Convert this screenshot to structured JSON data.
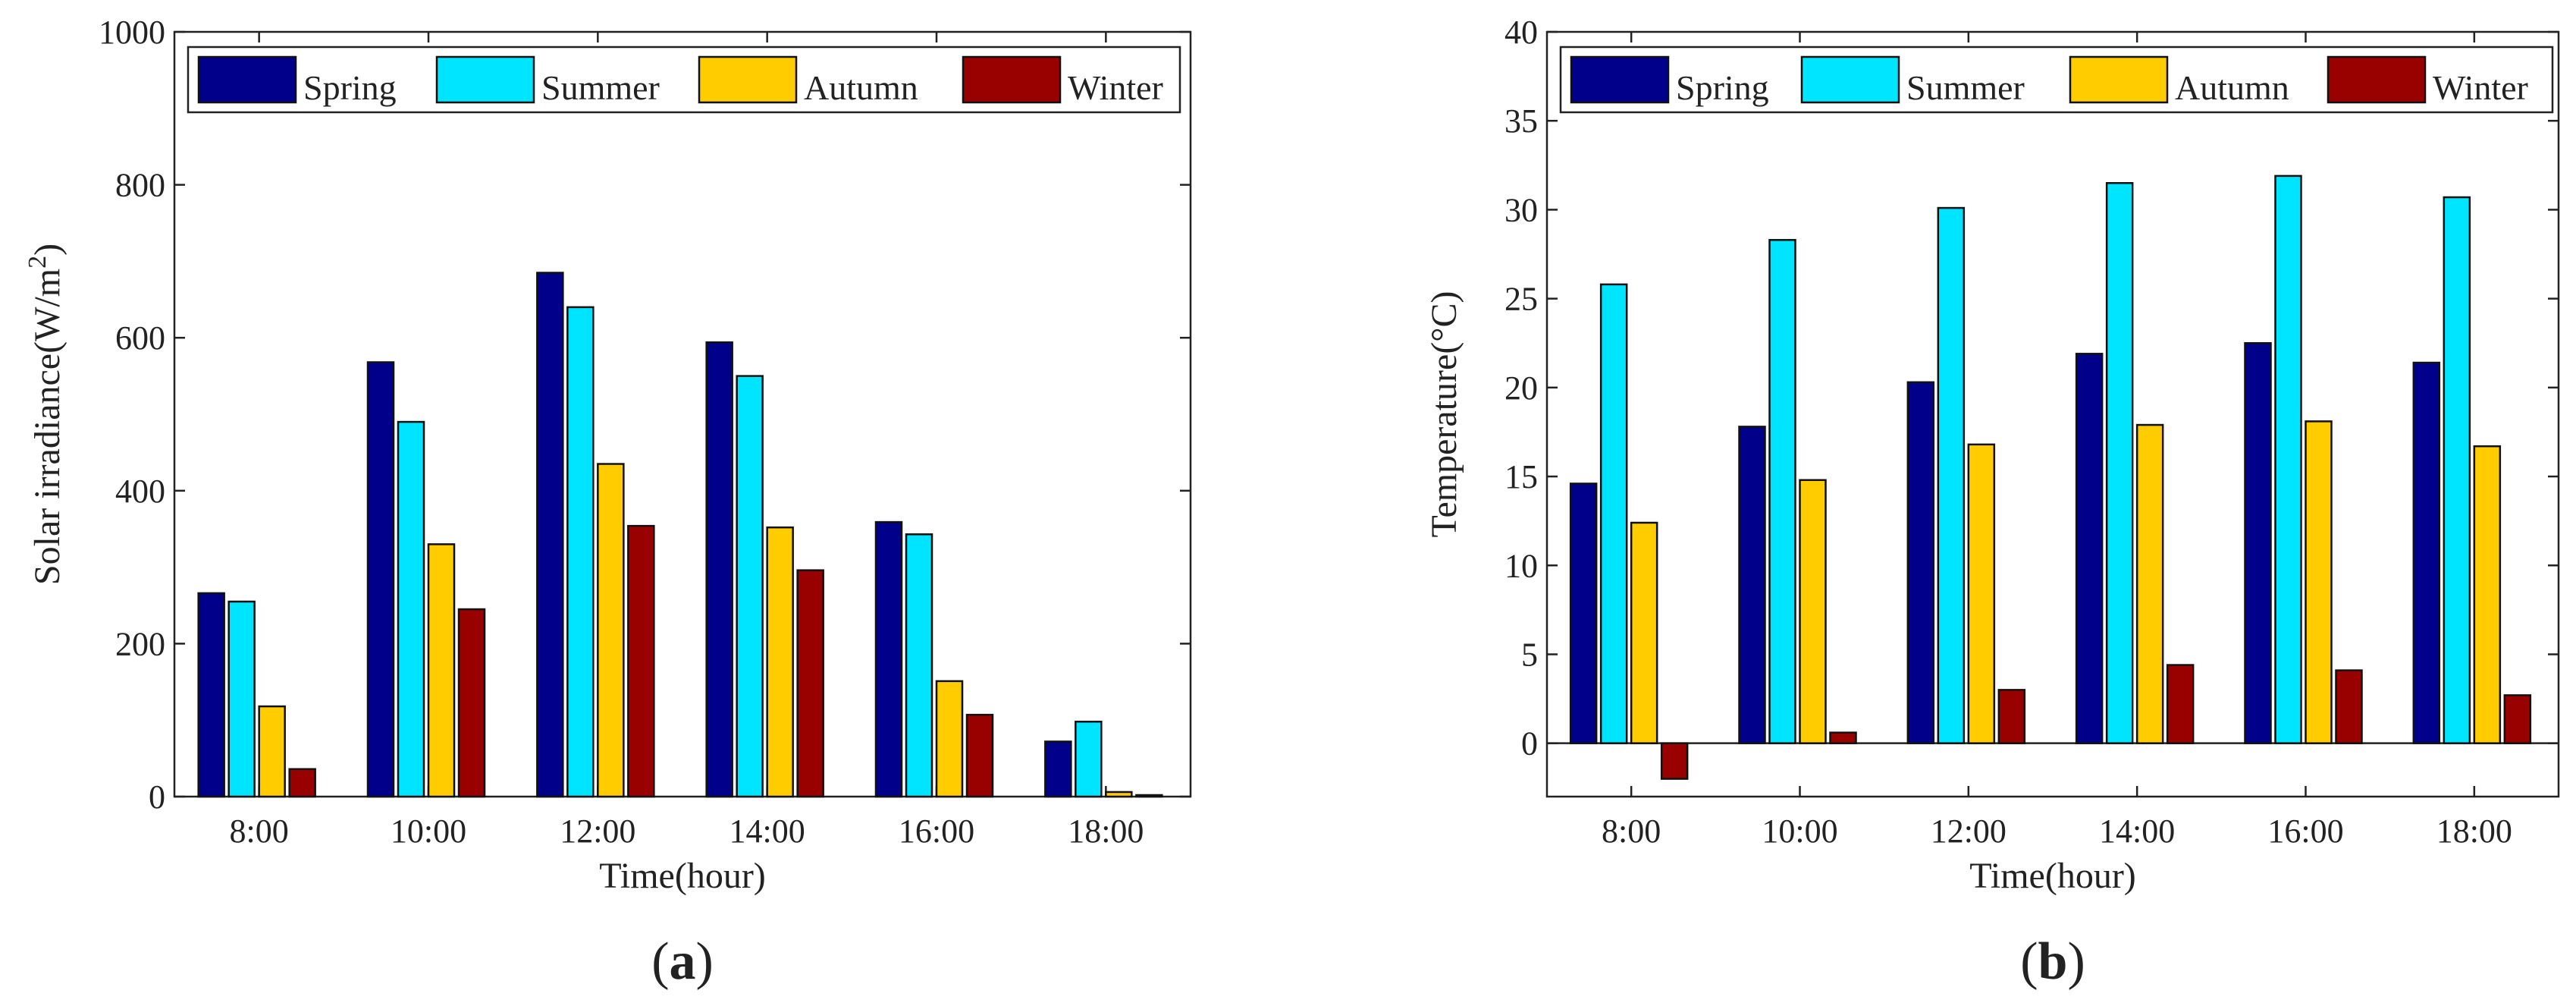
{
  "chart_data": [
    {
      "panel_label": "a",
      "type": "bar",
      "categories": [
        "8:00",
        "10:00",
        "12:00",
        "14:00",
        "16:00",
        "18:00"
      ],
      "series": [
        {
          "name": "Spring",
          "color": "#00008B",
          "values": [
            266,
            568,
            685,
            594,
            359,
            72
          ]
        },
        {
          "name": "Summer",
          "color": "#00E5FF",
          "values": [
            255,
            490,
            640,
            550,
            343,
            98
          ]
        },
        {
          "name": "Autumn",
          "color": "#FFCC00",
          "values": [
            118,
            330,
            435,
            352,
            151,
            6
          ]
        },
        {
          "name": "Winter",
          "color": "#990000",
          "values": [
            36,
            245,
            354,
            296,
            107,
            2
          ]
        }
      ],
      "xlabel": "Time(hour)",
      "ylabel": "Solar irradiance(W/m",
      "ylabel_sup": "2",
      "ylabel_end": ")",
      "ylim": [
        0,
        1000
      ],
      "yticks": [
        0,
        200,
        400,
        600,
        800,
        1000
      ],
      "grid": false,
      "legend_position": "top"
    },
    {
      "panel_label": "b",
      "type": "bar",
      "categories": [
        "8:00",
        "10:00",
        "12:00",
        "14:00",
        "16:00",
        "18:00"
      ],
      "series": [
        {
          "name": "Spring",
          "color": "#00008B",
          "values": [
            14.6,
            17.8,
            20.3,
            21.9,
            22.5,
            21.4
          ]
        },
        {
          "name": "Summer",
          "color": "#00E5FF",
          "values": [
            25.8,
            28.3,
            30.1,
            31.5,
            31.9,
            30.7
          ]
        },
        {
          "name": "Autumn",
          "color": "#FFCC00",
          "values": [
            12.4,
            14.8,
            16.8,
            17.9,
            18.1,
            16.7
          ]
        },
        {
          "name": "Winter",
          "color": "#990000",
          "values": [
            -2.0,
            0.6,
            3.0,
            4.4,
            4.1,
            2.7
          ]
        }
      ],
      "xlabel": "Time(hour)",
      "ylabel": "Temperature(°C)",
      "ylim": [
        -3,
        40
      ],
      "yticks": [
        0,
        5,
        10,
        15,
        20,
        25,
        30,
        35,
        40
      ],
      "grid": false,
      "legend_position": "top"
    }
  ]
}
